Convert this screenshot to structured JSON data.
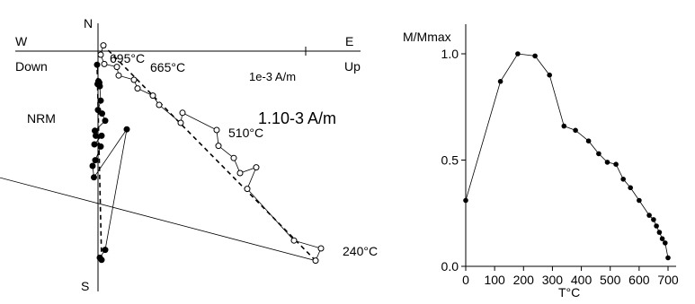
{
  "chart_data": [
    {
      "type": "scatter",
      "x_axis": {
        "positive_label": "E",
        "negative_label": "W",
        "positive_label_2": "Up",
        "negative_label_2": "Down"
      },
      "y_axis": {
        "positive_label": "N",
        "negative_label": "S"
      },
      "scale_bar_label": "1e-3 A/m",
      "annotations": [
        "NRM",
        "240°C",
        "510°C",
        "665°C",
        "695°C",
        "1.10-3 A/m"
      ],
      "point_labels": {
        "first": "NRM",
        "hot": "240°C",
        "mid": "510°C",
        "near_end": "665°C",
        "end": "695°C"
      },
      "units": "1e-3 A/m",
      "series": [
        {
          "name": "horizontal",
          "marker": "filled",
          "x": [
            -0.1,
            0.05,
            0.0,
            0.15,
            0.05,
            -0.05,
            0.2,
            0.3,
            0.0,
            0.45,
            0.8,
            -0.35,
            -0.25,
            0.4,
            -0.4,
            0.3,
            -0.3,
            -0.6,
            -0.45,
            3.2,
            0.8,
            0.2,
            0.4
          ],
          "y": [
            -0.95,
            -2.1,
            -2.25,
            -2.2,
            -2.2,
            -2.3,
            -2.45,
            -3.45,
            -4.1,
            -4.35,
            -4.85,
            -5.55,
            -5.9,
            -5.9,
            -6.5,
            -6.65,
            -7.6,
            -8.0,
            -8.8,
            -5.45,
            -13.85,
            -14.4,
            -14.55
          ]
        },
        {
          "name": "vertical",
          "marker": "open",
          "x": [
            -35.0,
            24.2,
            24.8,
            21.8,
            16.6,
            17.6,
            15.8,
            15.1,
            13.4,
            13.2,
            9.4,
            9.2,
            6.8,
            6.1,
            4.4,
            4.0,
            2.3,
            2.1,
            0.7,
            0.3,
            0.6
          ],
          "y": [
            -4.85,
            -14.6,
            -13.75,
            -13.2,
            -9.6,
            -8.1,
            -8.5,
            -7.45,
            -6.6,
            -5.5,
            -4.3,
            -5.0,
            -3.75,
            -3.1,
            -2.6,
            -2.0,
            -1.7,
            -1.1,
            -0.9,
            -0.25,
            0.4
          ]
        }
      ]
    },
    {
      "type": "line",
      "ylabel": "M/Mmax",
      "xlabel": "T°C",
      "xlim": [
        0,
        700
      ],
      "ylim": [
        0.0,
        1.0
      ],
      "xticks": [
        0,
        100,
        200,
        300,
        400,
        500,
        600,
        700
      ],
      "yticks": [
        0.0,
        0.5,
        1.0
      ],
      "ytick_labels": [
        "0.0",
        "0.5",
        "1.0"
      ],
      "x": [
        0,
        120,
        180,
        240,
        290,
        340,
        380,
        425,
        460,
        490,
        520,
        545,
        570,
        600,
        635,
        650,
        660,
        670,
        680,
        690,
        700
      ],
      "y": [
        0.31,
        0.87,
        1.0,
        0.99,
        0.9,
        0.66,
        0.64,
        0.59,
        0.53,
        0.49,
        0.48,
        0.41,
        0.37,
        0.31,
        0.24,
        0.22,
        0.19,
        0.16,
        0.13,
        0.11,
        0.04
      ]
    }
  ]
}
